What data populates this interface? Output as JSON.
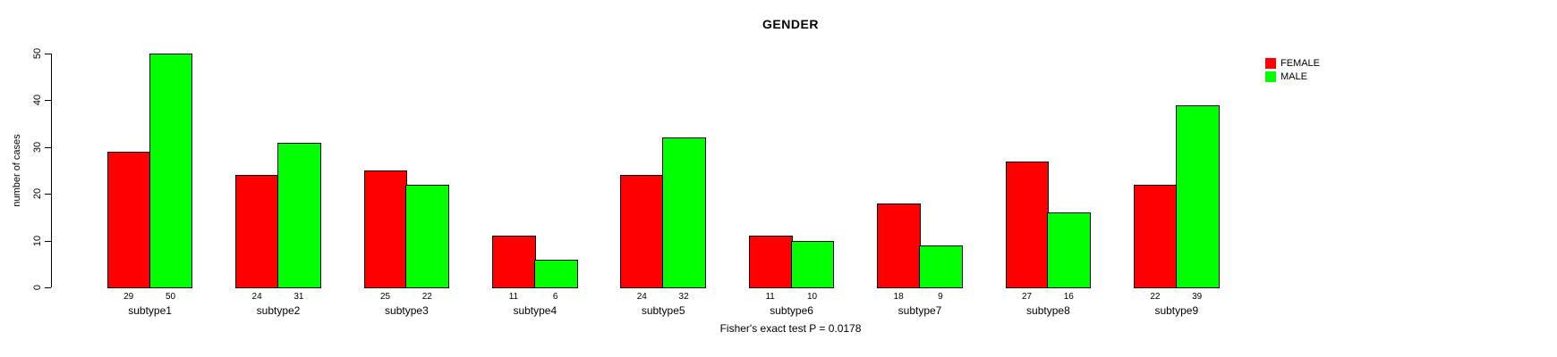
{
  "chart_data": {
    "type": "bar",
    "title": "GENDER",
    "xlabel": "",
    "ylabel": "number of cases",
    "categories": [
      "subtype1",
      "subtype2",
      "subtype3",
      "subtype4",
      "subtype5",
      "subtype6",
      "subtype7",
      "subtype8",
      "subtype9"
    ],
    "series": [
      {
        "name": "FEMALE",
        "color": "#ff0000",
        "values": [
          29,
          24,
          25,
          11,
          24,
          11,
          18,
          27,
          22
        ]
      },
      {
        "name": "MALE",
        "color": "#00ff00",
        "values": [
          50,
          31,
          22,
          6,
          32,
          10,
          9,
          16,
          39
        ]
      }
    ],
    "ylim": [
      0,
      50
    ],
    "yticks": [
      0,
      10,
      20,
      30,
      40,
      50
    ],
    "bar_value_labels": true,
    "grid": false,
    "legend_position": "top-right",
    "annotation": "Fisher's exact test P = 0.0178"
  }
}
